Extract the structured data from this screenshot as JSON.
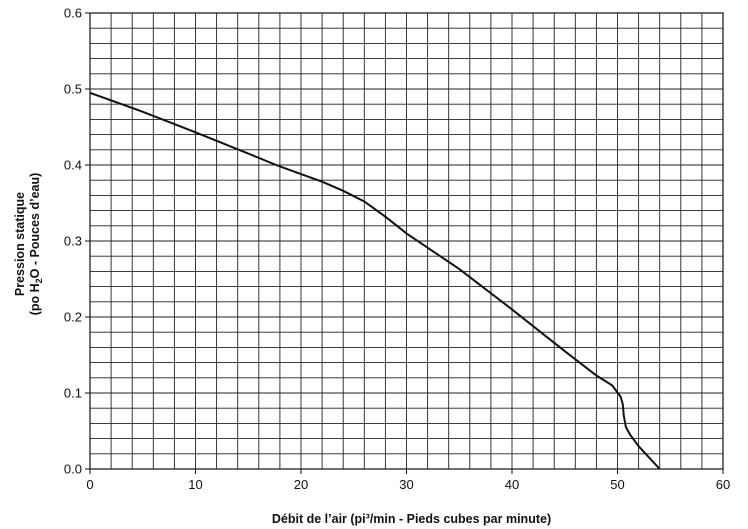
{
  "chart_data": {
    "type": "line",
    "title": "",
    "xlabel": "Débit de l’air (pi³/min - Pieds cubes par minute)",
    "ylabel": {
      "line1": "Pression statique",
      "line2_part1": "(po H",
      "line2_sub": "2",
      "line2_part2": "O - Pouces d’eau)"
    },
    "xlim": [
      0,
      60
    ],
    "ylim": [
      0,
      0.6
    ],
    "x_ticks": [
      "0",
      "10",
      "20",
      "30",
      "40",
      "50",
      "60"
    ],
    "y_ticks": [
      "0.0",
      "0.1",
      "0.2",
      "0.3",
      "0.4",
      "0.5",
      "0.6"
    ],
    "x_minor_step": 2,
    "y_minor_step": 0.02,
    "grid": true,
    "series": [
      {
        "x": [
          0,
          5,
          10,
          15,
          18,
          20,
          22,
          24,
          26,
          28,
          30,
          35,
          40,
          45,
          48,
          49.5,
          50.3,
          50.5,
          50.6,
          50.8,
          51.2,
          52,
          53,
          54
        ],
        "y": [
          0.495,
          0.47,
          0.443,
          0.415,
          0.398,
          0.388,
          0.378,
          0.366,
          0.352,
          0.332,
          0.31,
          0.263,
          0.21,
          0.155,
          0.123,
          0.11,
          0.095,
          0.085,
          0.07,
          0.055,
          0.045,
          0.03,
          0.015,
          0.0
        ]
      }
    ]
  }
}
